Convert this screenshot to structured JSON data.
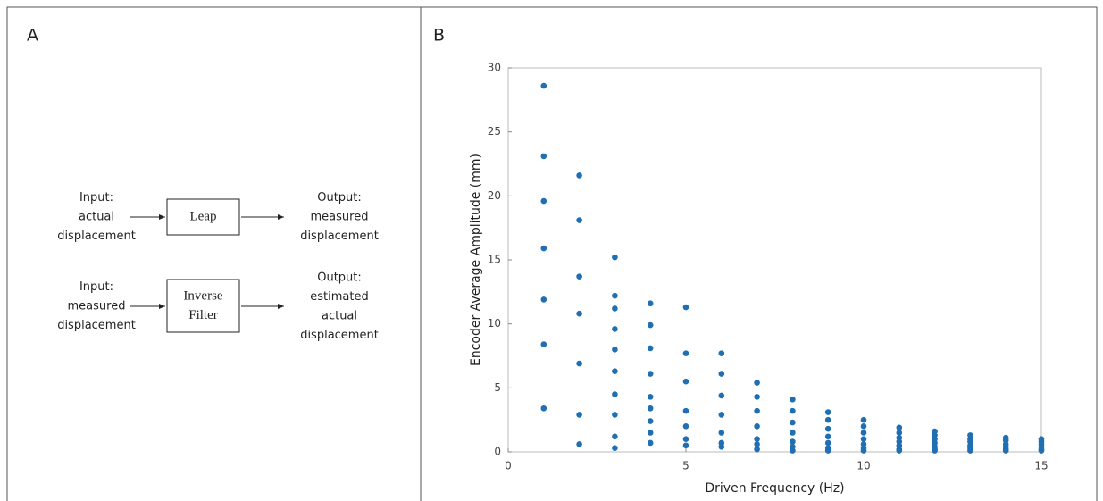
{
  "panel_labels": [
    "A",
    "B"
  ],
  "diagram": {
    "rows": [
      {
        "input": [
          "Input:",
          "actual",
          "displacement"
        ],
        "box": [
          "Leap"
        ],
        "output": [
          "Output:",
          "measured",
          "displacement"
        ]
      },
      {
        "input": [
          "Input:",
          "measured",
          "displacement"
        ],
        "box": [
          "Inverse",
          "Filter"
        ],
        "output": [
          "Output:",
          "estimated",
          "actual",
          "displacement"
        ]
      }
    ]
  },
  "chart_data": {
    "type": "scatter",
    "x_label": "Driven Frequency (Hz)",
    "y_label": "Encoder Average Amplitude (mm)",
    "color": "#1f6fb2",
    "x": [
      1,
      1,
      1,
      1,
      1,
      1,
      1,
      2,
      2,
      2,
      2,
      2,
      2,
      2,
      3,
      3,
      3,
      3,
      3,
      3,
      3,
      3,
      3,
      3,
      4,
      4,
      4,
      4,
      4,
      4,
      4,
      4,
      4,
      5,
      5,
      5,
      5,
      5,
      5,
      5,
      6,
      6,
      6,
      6,
      6,
      6,
      6,
      7,
      7,
      7,
      7,
      7,
      7,
      7,
      8,
      8,
      8,
      8,
      8,
      8,
      8,
      9,
      9,
      9,
      9,
      9,
      9,
      9,
      10,
      10,
      10,
      10,
      10,
      10,
      10,
      11,
      11,
      11,
      11,
      11,
      11,
      11,
      12,
      12,
      12,
      12,
      12,
      12,
      12,
      13,
      13,
      13,
      13,
      13,
      13,
      14,
      14,
      14,
      14,
      14,
      14,
      15,
      15,
      15,
      15,
      15,
      15
    ],
    "values": [
      28.6,
      23.1,
      19.6,
      15.9,
      11.9,
      8.4,
      3.4,
      21.6,
      18.1,
      13.7,
      10.8,
      6.9,
      2.9,
      0.6,
      15.2,
      12.2,
      11.2,
      9.6,
      8.0,
      6.3,
      4.5,
      2.9,
      1.2,
      0.3,
      11.6,
      9.9,
      8.1,
      6.1,
      4.3,
      3.4,
      2.4,
      1.5,
      0.7,
      11.3,
      7.7,
      5.5,
      3.2,
      2.0,
      1.0,
      0.5,
      7.7,
      6.1,
      4.4,
      2.9,
      1.5,
      0.7,
      0.4,
      5.4,
      4.3,
      3.2,
      2.0,
      1.0,
      0.6,
      0.2,
      4.1,
      3.2,
      2.3,
      1.5,
      0.8,
      0.4,
      0.1,
      3.1,
      2.5,
      1.8,
      1.2,
      0.7,
      0.3,
      0.1,
      2.5,
      2.0,
      1.5,
      1.0,
      0.6,
      0.3,
      0.1,
      1.9,
      1.5,
      1.1,
      0.8,
      0.5,
      0.2,
      0.1,
      1.6,
      1.3,
      1.0,
      0.7,
      0.4,
      0.2,
      0.1,
      1.3,
      1.0,
      0.8,
      0.5,
      0.3,
      0.1,
      1.1,
      0.9,
      0.6,
      0.4,
      0.2,
      0.1,
      1.0,
      0.8,
      0.6,
      0.4,
      0.2,
      0.1
    ],
    "xlim": [
      0,
      15
    ],
    "ylim": [
      0,
      30
    ],
    "xticks": [
      0,
      5,
      10,
      15
    ],
    "yticks": [
      0,
      5,
      10,
      15,
      20,
      25,
      30
    ]
  }
}
